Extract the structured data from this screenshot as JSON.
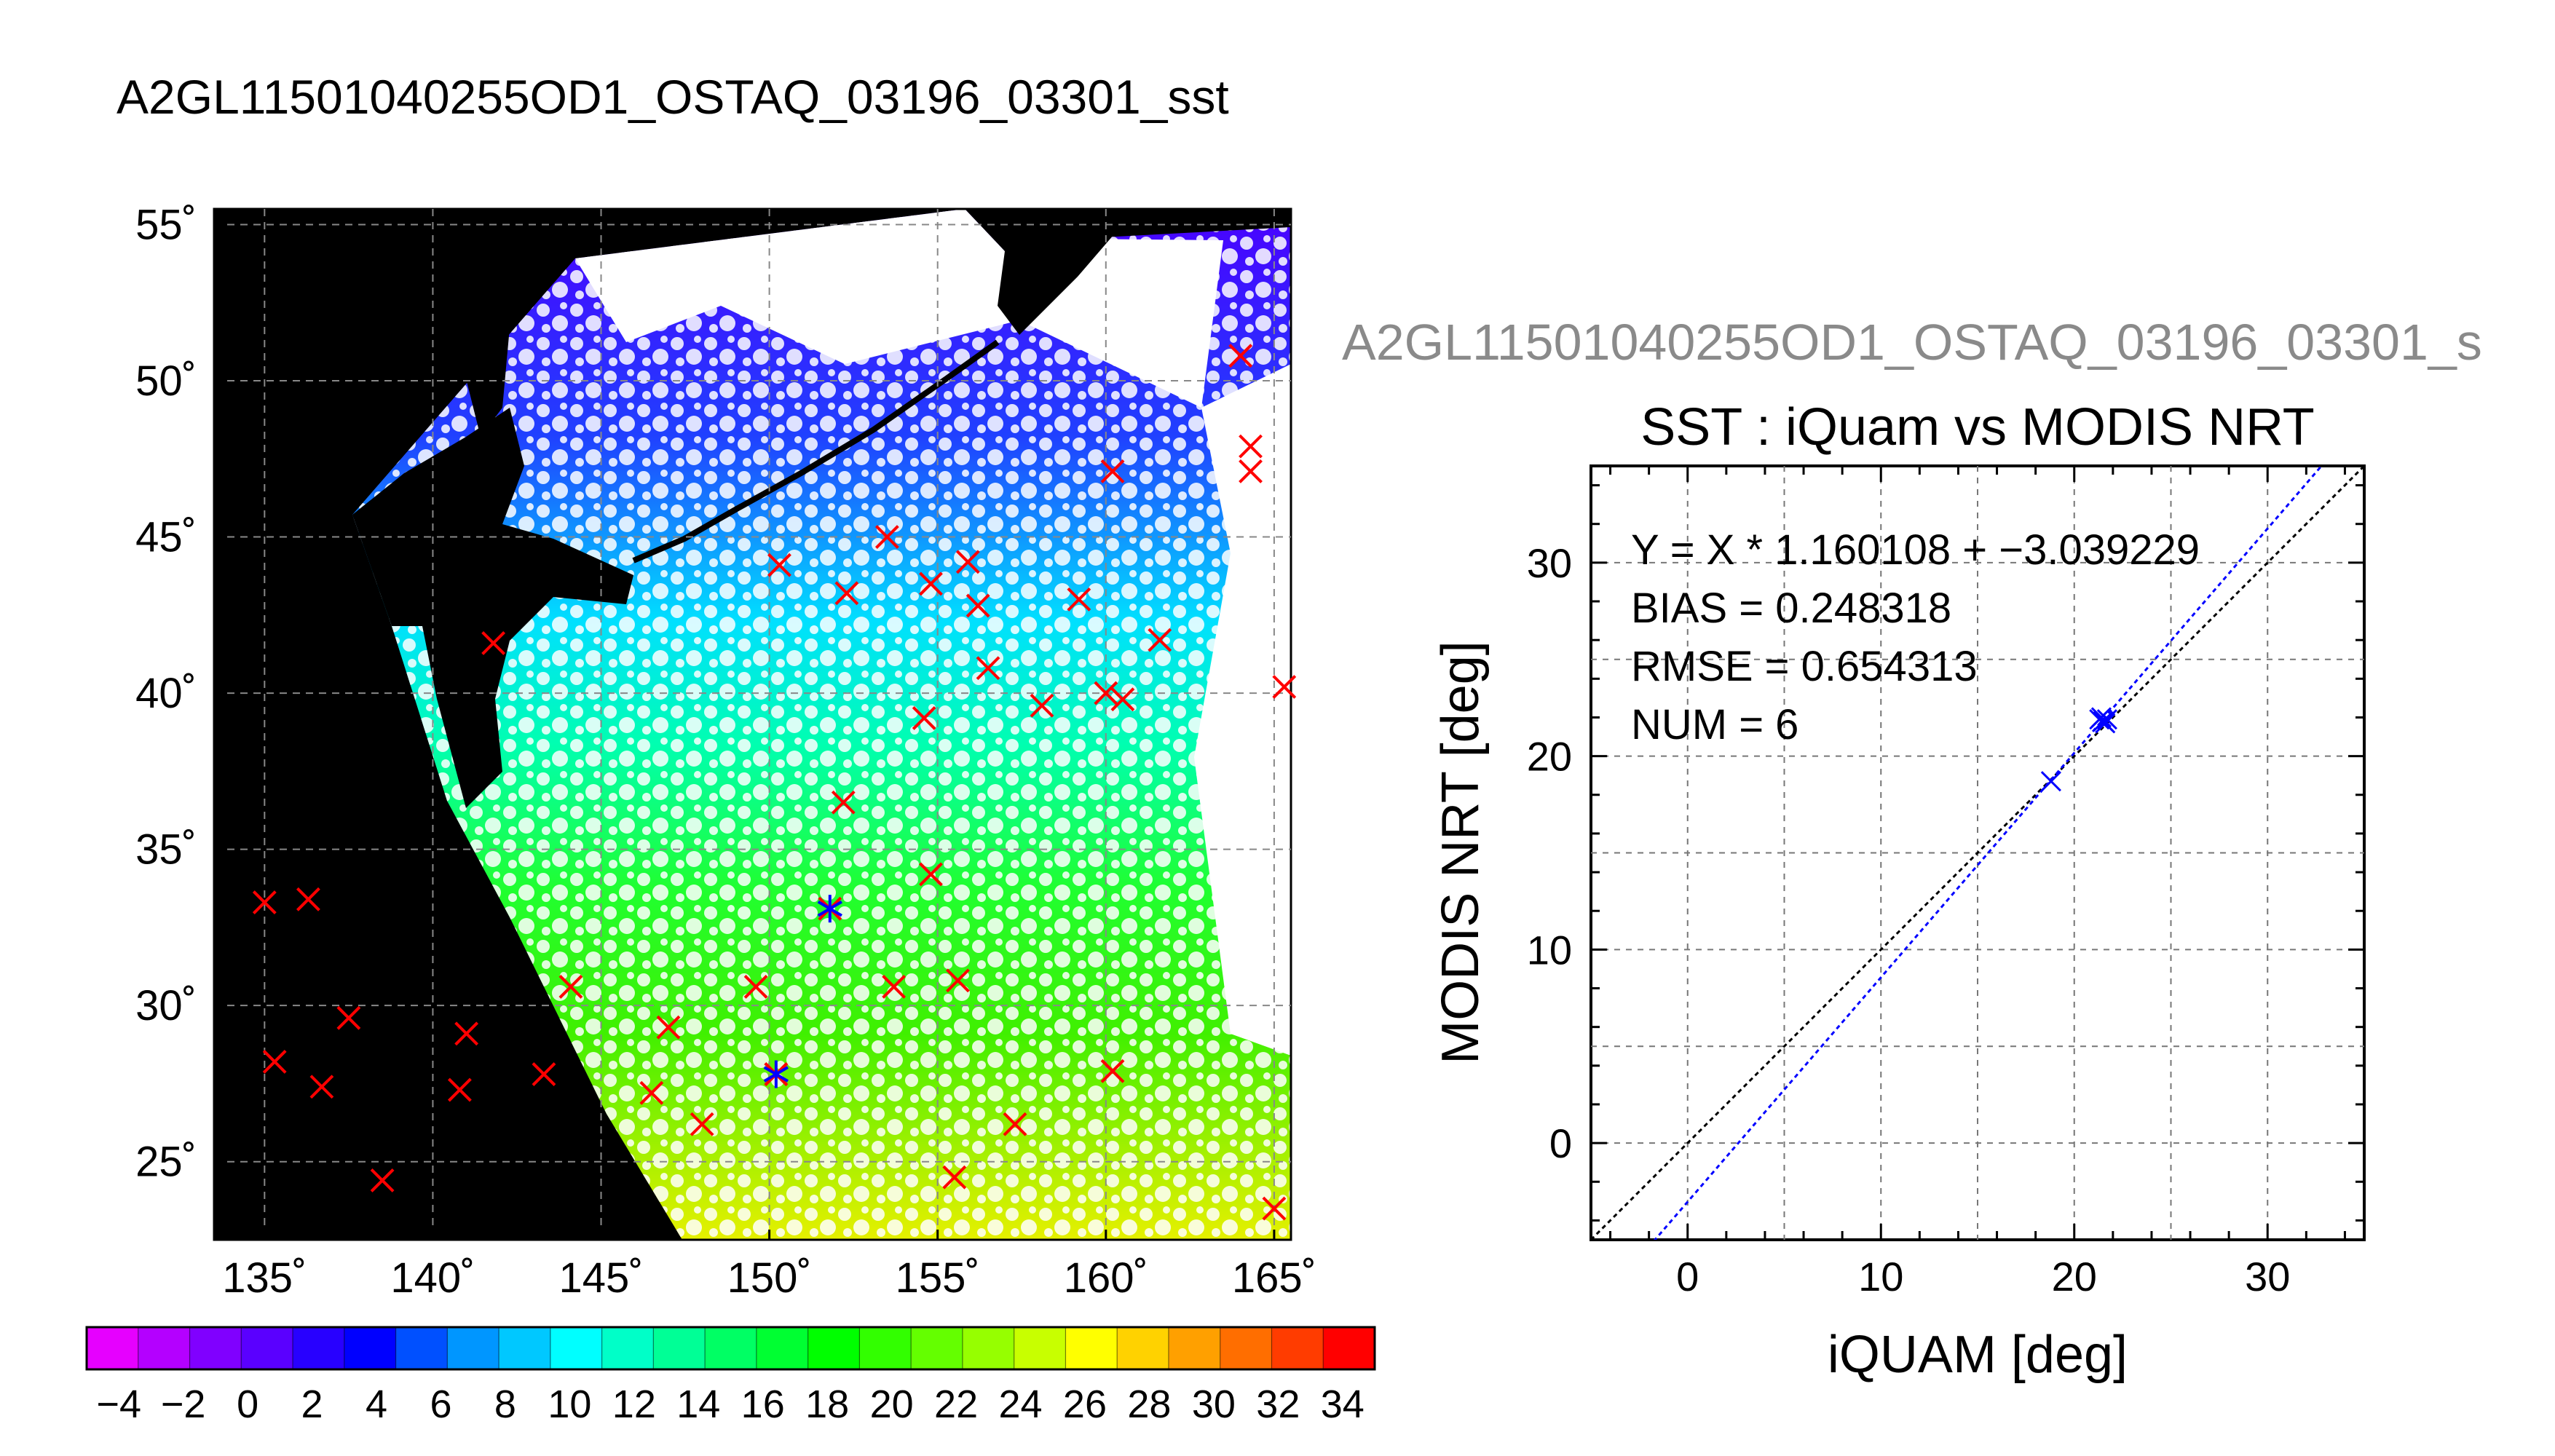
{
  "titles": {
    "main": "A2GL11501040255OD1_OSTAQ_03196_03301_sst",
    "right": "A2GL11501040255OD1_OSTAQ_03196_03301_s"
  },
  "chart_data": [
    {
      "type": "map",
      "lon_ticks": [
        "135˚",
        "140˚",
        "145˚",
        "150˚",
        "155˚",
        "160˚",
        "165˚"
      ],
      "lat_ticks": [
        "55˚",
        "50˚",
        "45˚",
        "40˚",
        "35˚",
        "30˚",
        "25˚"
      ],
      "lon_range": [
        133.5,
        165.5
      ],
      "lat_range": [
        22.5,
        55.5
      ],
      "grid": true,
      "colorbar": {
        "ticks": [
          "−4",
          "−2",
          "0",
          "2",
          "4",
          "6",
          "8",
          "10",
          "12",
          "14",
          "16",
          "18",
          "20",
          "22",
          "24",
          "26",
          "28",
          "30",
          "32",
          "34"
        ],
        "range": [
          -5,
          35
        ],
        "colors": [
          "#e600ff",
          "#b400ff",
          "#8000ff",
          "#5a00ff",
          "#2800ff",
          "#0000ff",
          "#0050ff",
          "#0096ff",
          "#00c8ff",
          "#00ffff",
          "#00ffc8",
          "#00ff96",
          "#00ff64",
          "#00ff32",
          "#00ff00",
          "#32ff00",
          "#64ff00",
          "#96ff00",
          "#c8ff00",
          "#ffff00",
          "#ffd200",
          "#ffa000",
          "#ff6e00",
          "#ff3c00",
          "#ff0000"
        ]
      },
      "buoy_markers": [
        {
          "lon": 135,
          "lat": 33.3
        },
        {
          "lon": 136.3,
          "lat": 33.4
        },
        {
          "lon": 135.3,
          "lat": 28.2
        },
        {
          "lon": 136.7,
          "lat": 27.4
        },
        {
          "lon": 137.5,
          "lat": 29.6
        },
        {
          "lon": 138.5,
          "lat": 24.4
        },
        {
          "lon": 140.8,
          "lat": 27.3
        },
        {
          "lon": 141,
          "lat": 29.1
        },
        {
          "lon": 143.3,
          "lat": 27.8
        },
        {
          "lon": 144.1,
          "lat": 30.6
        },
        {
          "lon": 146.5,
          "lat": 27.2
        },
        {
          "lon": 147,
          "lat": 29.3
        },
        {
          "lon": 148,
          "lat": 26.2
        },
        {
          "lon": 149.6,
          "lat": 30.6
        },
        {
          "lon": 150.2,
          "lat": 27.8
        },
        {
          "lon": 153.7,
          "lat": 30.6
        },
        {
          "lon": 155.6,
          "lat": 30.8
        },
        {
          "lon": 154.8,
          "lat": 34.2
        },
        {
          "lon": 152.2,
          "lat": 36.5
        },
        {
          "lon": 155.5,
          "lat": 24.5
        },
        {
          "lon": 157.3,
          "lat": 26.2
        },
        {
          "lon": 160.2,
          "lat": 27.9
        },
        {
          "lon": 154.6,
          "lat": 39.2
        },
        {
          "lon": 158.1,
          "lat": 39.6
        },
        {
          "lon": 160,
          "lat": 40
        },
        {
          "lon": 160.5,
          "lat": 39.8
        },
        {
          "lon": 161.6,
          "lat": 41.7
        },
        {
          "lon": 159.2,
          "lat": 43
        },
        {
          "lon": 156.5,
          "lat": 40.8
        },
        {
          "lon": 155.9,
          "lat": 44.2
        },
        {
          "lon": 156.2,
          "lat": 42.8
        },
        {
          "lon": 154.8,
          "lat": 43.5
        },
        {
          "lon": 153.5,
          "lat": 45
        },
        {
          "lon": 152.3,
          "lat": 43.2
        },
        {
          "lon": 150.3,
          "lat": 44.1
        },
        {
          "lon": 141.8,
          "lat": 41.6
        },
        {
          "lon": 160.2,
          "lat": 47.1
        },
        {
          "lon": 164,
          "lat": 50.8
        },
        {
          "lon": 164.3,
          "lat": 47.9
        },
        {
          "lon": 164.3,
          "lat": 47.1
        },
        {
          "lon": 165.3,
          "lat": 40.2
        },
        {
          "lon": 165,
          "lat": 23.5
        },
        {
          "lon": 150.2,
          "lat": 27.8
        },
        {
          "lon": 151.8,
          "lat": 33.1
        }
      ],
      "matched_markers": [
        {
          "lon": 150.2,
          "lat": 27.8
        },
        {
          "lon": 151.8,
          "lat": 33.1
        }
      ]
    },
    {
      "type": "scatter",
      "title": "SST : iQuam vs MODIS NRT",
      "xlabel": "iQUAM [deg]",
      "ylabel": "MODIS NRT [deg]",
      "xlim": [
        -5,
        35
      ],
      "ylim": [
        -5,
        35
      ],
      "x_ticks": [
        "0",
        "10",
        "20",
        "30"
      ],
      "y_ticks": [
        "0",
        "10",
        "20",
        "30"
      ],
      "grid": true,
      "points": [
        {
          "x": 18.8,
          "y": 18.7
        },
        {
          "x": 21.3,
          "y": 21.9
        },
        {
          "x": 21.5,
          "y": 21.8
        },
        {
          "x": 21.7,
          "y": 21.9
        },
        {
          "x": 21.4,
          "y": 22.0
        },
        {
          "x": 21.6,
          "y": 21.7
        }
      ],
      "fit": {
        "slope": 1.160108,
        "intercept": -3.039229
      },
      "stats": [
        "Y = X * 1.160108 + −3.039229",
        "BIAS = 0.248318",
        "RMSE = 0.654313",
        "NUM = 6"
      ],
      "colors": {
        "points": "#0000ff",
        "fit": "#0000ff",
        "identity": "#000000"
      }
    }
  ]
}
